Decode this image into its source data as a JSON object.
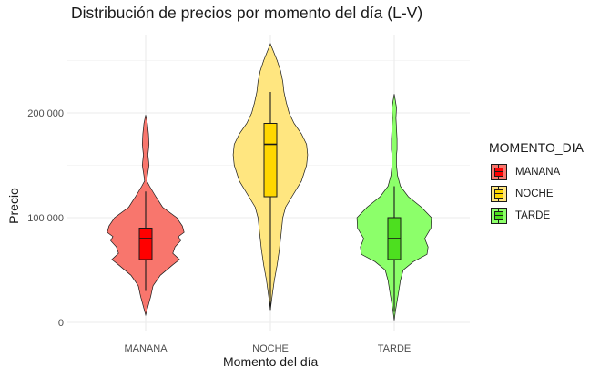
{
  "chart_data": {
    "type": "violin",
    "title": "Distribución de precios por momento del día (L-V)",
    "xlabel": "Momento del día",
    "ylabel": "Precio",
    "categories": [
      "MANANA",
      "NOCHE",
      "TARDE"
    ],
    "ylim": [
      0,
      265000
    ],
    "yticks": [
      0,
      100000,
      200000
    ],
    "ytick_labels": [
      "0",
      "100 000",
      "200 000"
    ],
    "grid": true,
    "legend": {
      "title": "MOMENTO_DIA",
      "position": "right",
      "entries": [
        "MANANA",
        "NOCHE",
        "TARDE"
      ]
    },
    "series": [
      {
        "name": "MANANA",
        "color": "#f8766d",
        "box_color": "#ff0000",
        "box": {
          "whisker_low": 30000,
          "q1": 60000,
          "median": 80000,
          "q3": 90000,
          "whisker_high": 125000
        },
        "density": {
          "y": [
            7000,
            15000,
            25000,
            35000,
            45000,
            55000,
            60000,
            66000,
            72000,
            78000,
            82000,
            86000,
            92000,
            100000,
            110000,
            120000,
            130000,
            135000,
            140000,
            150000,
            160000,
            170000,
            180000,
            190000,
            198000
          ],
          "w": [
            0.0,
            0.04,
            0.09,
            0.13,
            0.26,
            0.48,
            0.6,
            0.48,
            0.52,
            0.62,
            0.58,
            0.68,
            0.65,
            0.55,
            0.3,
            0.18,
            0.07,
            0.02,
            0.03,
            0.06,
            0.04,
            0.06,
            0.05,
            0.03,
            0.0
          ]
        }
      },
      {
        "name": "NOCHE",
        "color": "#ffe680",
        "box_color": "#ffd700",
        "box": {
          "whisker_low": 12000,
          "q1": 120000,
          "median": 170000,
          "q3": 190000,
          "whisker_high": 220000
        },
        "density": {
          "y": [
            12000,
            25000,
            40000,
            55000,
            70000,
            85000,
            100000,
            110000,
            120000,
            135000,
            150000,
            160000,
            170000,
            180000,
            190000,
            200000,
            210000,
            220000,
            230000,
            240000,
            250000,
            258000,
            266000
          ],
          "w": [
            0.0,
            0.03,
            0.07,
            0.12,
            0.16,
            0.19,
            0.22,
            0.27,
            0.38,
            0.55,
            0.64,
            0.66,
            0.64,
            0.55,
            0.42,
            0.33,
            0.28,
            0.24,
            0.22,
            0.18,
            0.12,
            0.06,
            0.0
          ]
        }
      },
      {
        "name": "TARDE",
        "color": "#8cff6a",
        "box_color": "#4ddf1f",
        "box": {
          "whisker_low": 10000,
          "q1": 60000,
          "median": 80000,
          "q3": 100000,
          "whisker_high": 130000
        },
        "density": {
          "y": [
            2000,
            10000,
            20000,
            30000,
            40000,
            50000,
            58000,
            65000,
            72000,
            80000,
            90000,
            100000,
            110000,
            120000,
            130000,
            140000,
            150000,
            160000,
            165000,
            175000,
            185000,
            195000,
            205000,
            212000,
            218000
          ],
          "w": [
            0.0,
            0.02,
            0.05,
            0.08,
            0.11,
            0.16,
            0.34,
            0.58,
            0.6,
            0.54,
            0.65,
            0.66,
            0.48,
            0.25,
            0.11,
            0.06,
            0.04,
            0.04,
            0.05,
            0.05,
            0.04,
            0.03,
            0.04,
            0.02,
            0.0
          ]
        }
      }
    ]
  }
}
